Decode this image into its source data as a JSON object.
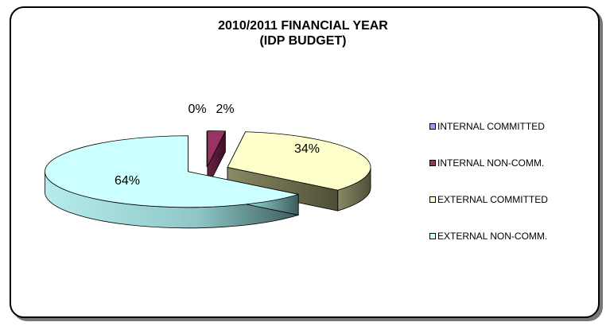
{
  "chart_data": {
    "type": "pie",
    "title_lines": [
      "2010/2011 FINANCIAL YEAR",
      "(IDP BUDGET)"
    ],
    "categories": [
      "INTERNAL COMMITTED",
      "INTERNAL NON-COMM.",
      "EXTERNAL COMMITTED",
      "EXTERNAL NON-COMM."
    ],
    "values": [
      0,
      2,
      34,
      64
    ],
    "data_labels": [
      "0%",
      "2%",
      "34%",
      "64%"
    ],
    "colors": [
      "#9999ff",
      "#993366",
      "#ffffcc",
      "#ccffff"
    ],
    "legend_position": "right",
    "exploded": true,
    "three_d": true
  }
}
